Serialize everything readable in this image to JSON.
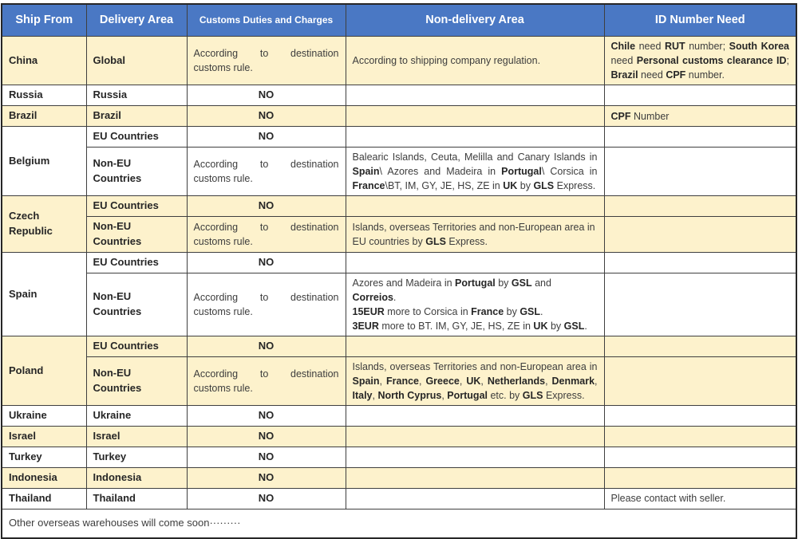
{
  "colors": {
    "header_bg": "#4a78c4",
    "header_text": "#ffffff",
    "row_highlight": "#fdf2cc",
    "grid_line": "#3f3f3f",
    "outer_border": "#262626",
    "body_text": "#3d3d3d"
  },
  "table": {
    "columns": [
      "Ship From",
      "Delivery Area",
      "Customs Duties and Charges",
      "Non-delivery Area",
      "ID Number Need"
    ],
    "rows": [
      {
        "bg": "cream",
        "cells": [
          {
            "text": "China",
            "b": 1
          },
          {
            "text": "Global",
            "b": 1
          },
          {
            "text": "According to destination customs rule.",
            "a": "j"
          },
          {
            "text": "According to shipping company regulation."
          },
          {
            "a": "j",
            "seg": [
              {
                "t": "Chile",
                "b": 1
              },
              {
                "t": " need "
              },
              {
                "t": "RUT",
                "b": 1
              },
              {
                "t": " number; "
              },
              {
                "t": "South Korea",
                "b": 1
              },
              {
                "t": " need "
              },
              {
                "t": "Personal customs clearance ID",
                "b": 1
              },
              {
                "t": "; "
              },
              {
                "t": "Brazil",
                "b": 1
              },
              {
                "t": " need "
              },
              {
                "t": "CPF",
                "b": 1
              },
              {
                "t": " number."
              }
            ]
          }
        ]
      },
      {
        "bg": "white",
        "cells": [
          {
            "text": "Russia",
            "b": 1
          },
          {
            "text": "Russia",
            "b": 1
          },
          {
            "text": "NO",
            "b": 1,
            "a": "c"
          },
          {
            "text": ""
          },
          {
            "text": ""
          }
        ]
      },
      {
        "bg": "cream",
        "cells": [
          {
            "text": "Brazil",
            "b": 1
          },
          {
            "text": "Brazil",
            "b": 1
          },
          {
            "text": "NO",
            "b": 1,
            "a": "c"
          },
          {
            "text": ""
          },
          {
            "seg": [
              {
                "t": "CPF",
                "b": 1
              },
              {
                "t": " Number"
              }
            ]
          }
        ]
      },
      {
        "bg": "white",
        "cells": [
          {
            "text": "Belgium",
            "b": 1,
            "rowspan": 2
          },
          {
            "text": "EU Countries",
            "b": 1
          },
          {
            "text": "NO",
            "b": 1,
            "a": "c"
          },
          {
            "text": ""
          },
          {
            "text": ""
          }
        ]
      },
      {
        "bg": "white",
        "cells": [
          {
            "text": "Non-EU Countries",
            "b": 1
          },
          {
            "text": "According to destination customs rule.",
            "a": "j"
          },
          {
            "a": "j",
            "seg": [
              {
                "t": "Balearic Islands, Ceuta, Melilla and Canary Islands in "
              },
              {
                "t": "Spain",
                "b": 1
              },
              {
                "t": "\\ Azores and Madeira in "
              },
              {
                "t": "Portugal",
                "b": 1
              },
              {
                "t": "\\ Corsica in "
              },
              {
                "t": "France",
                "b": 1
              },
              {
                "t": "\\BT, IM, GY, JE, HS, ZE in "
              },
              {
                "t": "UK",
                "b": 1
              },
              {
                "t": " by "
              },
              {
                "t": "GLS",
                "b": 1
              },
              {
                "t": " Express."
              }
            ]
          },
          {
            "text": ""
          }
        ]
      },
      {
        "bg": "cream",
        "cells": [
          {
            "text": "Czech Republic",
            "b": 1,
            "rowspan": 2
          },
          {
            "text": "EU Countries",
            "b": 1
          },
          {
            "text": "NO",
            "b": 1,
            "a": "c"
          },
          {
            "text": ""
          },
          {
            "text": ""
          }
        ]
      },
      {
        "bg": "cream",
        "cells": [
          {
            "text": "Non-EU Countries",
            "b": 1
          },
          {
            "text": "According to destination customs rule.",
            "a": "j"
          },
          {
            "seg": [
              {
                "t": "Islands, overseas Territories and non-European area in EU countries by "
              },
              {
                "t": "GLS",
                "b": 1
              },
              {
                "t": " Express."
              }
            ]
          },
          {
            "text": ""
          }
        ]
      },
      {
        "bg": "white",
        "cells": [
          {
            "text": "Spain",
            "b": 1,
            "rowspan": 2
          },
          {
            "text": "EU Countries",
            "b": 1
          },
          {
            "text": "NO",
            "b": 1,
            "a": "c"
          },
          {
            "text": ""
          },
          {
            "text": ""
          }
        ]
      },
      {
        "bg": "white",
        "cells": [
          {
            "text": "Non-EU Countries",
            "b": 1
          },
          {
            "text": "According to destination customs rule.",
            "a": "j"
          },
          {
            "seg": [
              {
                "t": "Azores and Madeira in "
              },
              {
                "t": "Portugal",
                "b": 1
              },
              {
                "t": " by "
              },
              {
                "t": "GSL",
                "b": 1
              },
              {
                "t": " and "
              },
              {
                "t": "Correios",
                "b": 1
              },
              {
                "t": "."
              },
              {
                "br": 1
              },
              {
                "t": "15EUR",
                "b": 1
              },
              {
                "t": " more to Corsica in "
              },
              {
                "t": "France",
                "b": 1
              },
              {
                "t": " by "
              },
              {
                "t": "GSL",
                "b": 1
              },
              {
                "t": "."
              },
              {
                "br": 1
              },
              {
                "t": "3EUR",
                "b": 1
              },
              {
                "t": " more to BT. IM, GY, JE, HS, ZE in "
              },
              {
                "t": "UK",
                "b": 1
              },
              {
                "t": " by "
              },
              {
                "t": "GSL",
                "b": 1
              },
              {
                "t": "."
              }
            ]
          },
          {
            "text": ""
          }
        ]
      },
      {
        "bg": "cream",
        "cells": [
          {
            "text": "Poland",
            "b": 1,
            "rowspan": 2
          },
          {
            "text": "EU Countries",
            "b": 1
          },
          {
            "text": "NO",
            "b": 1,
            "a": "c"
          },
          {
            "text": ""
          },
          {
            "text": ""
          }
        ]
      },
      {
        "bg": "cream",
        "cells": [
          {
            "text": "Non-EU Countries",
            "b": 1
          },
          {
            "text": "According to destination customs rule.",
            "a": "j"
          },
          {
            "a": "j",
            "seg": [
              {
                "t": "Islands, overseas Territories and non-European area in "
              },
              {
                "t": "Spain",
                "b": 1
              },
              {
                "t": ", "
              },
              {
                "t": "France",
                "b": 1
              },
              {
                "t": ", "
              },
              {
                "t": "Greece",
                "b": 1
              },
              {
                "t": ", "
              },
              {
                "t": "UK",
                "b": 1
              },
              {
                "t": ", "
              },
              {
                "t": "Netherlands",
                "b": 1
              },
              {
                "t": ", "
              },
              {
                "t": "Denmark",
                "b": 1
              },
              {
                "t": ", "
              },
              {
                "t": "Italy",
                "b": 1
              },
              {
                "t": ", "
              },
              {
                "t": "North Cyprus",
                "b": 1
              },
              {
                "t": ", "
              },
              {
                "t": "Portugal",
                "b": 1
              },
              {
                "t": " etc. by "
              },
              {
                "t": "GLS",
                "b": 1
              },
              {
                "t": " Express."
              }
            ]
          },
          {
            "text": ""
          }
        ]
      },
      {
        "bg": "white",
        "cells": [
          {
            "text": "Ukraine",
            "b": 1
          },
          {
            "text": "Ukraine",
            "b": 1
          },
          {
            "text": "NO",
            "b": 1,
            "a": "c"
          },
          {
            "text": ""
          },
          {
            "text": ""
          }
        ]
      },
      {
        "bg": "cream",
        "cells": [
          {
            "text": "Israel",
            "b": 1
          },
          {
            "text": "Israel",
            "b": 1
          },
          {
            "text": "NO",
            "b": 1,
            "a": "c"
          },
          {
            "text": ""
          },
          {
            "text": ""
          }
        ]
      },
      {
        "bg": "white",
        "cells": [
          {
            "text": "Turkey",
            "b": 1
          },
          {
            "text": "Turkey",
            "b": 1
          },
          {
            "text": "NO",
            "b": 1,
            "a": "c"
          },
          {
            "text": ""
          },
          {
            "text": ""
          }
        ]
      },
      {
        "bg": "cream",
        "cells": [
          {
            "text": "Indonesia",
            "b": 1
          },
          {
            "text": "Indonesia",
            "b": 1
          },
          {
            "text": "NO",
            "b": 1,
            "a": "c"
          },
          {
            "text": ""
          },
          {
            "text": ""
          }
        ]
      },
      {
        "bg": "white",
        "cells": [
          {
            "text": "Thailand",
            "b": 1
          },
          {
            "text": "Thailand",
            "b": 1
          },
          {
            "text": "NO",
            "b": 1,
            "a": "c"
          },
          {
            "text": ""
          },
          {
            "text": "Please contact with seller."
          }
        ]
      },
      {
        "bg": "white",
        "cells": [
          {
            "text": "Other overseas warehouses will come soon·········",
            "colspan": 5
          }
        ]
      }
    ]
  }
}
